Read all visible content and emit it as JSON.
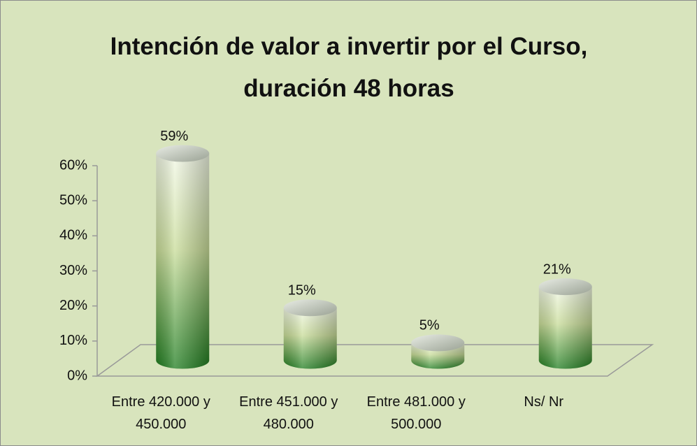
{
  "chart_data": {
    "type": "bar3d",
    "title": "Intención de valor a invertir por el Curso, duración 48 horas",
    "categories": [
      "Entre 420.000 y 450.000",
      "Entre 451.000 y 480.000",
      "Entre 481.000 y 500.000",
      "Ns/ Nr"
    ],
    "values": [
      59,
      15,
      5,
      21
    ],
    "value_labels": [
      "59%",
      "15%",
      "5%",
      "21%"
    ],
    "color": "#1f7d1f",
    "ylim": [
      0,
      60
    ],
    "yticks": [
      {
        "value": 0,
        "label": "0%"
      },
      {
        "value": 10,
        "label": "10%"
      },
      {
        "value": 20,
        "label": "20%"
      },
      {
        "value": 30,
        "label": "30%"
      },
      {
        "value": 40,
        "label": "40%"
      },
      {
        "value": 50,
        "label": "50%"
      },
      {
        "value": 60,
        "label": "60%"
      }
    ],
    "grid": false
  }
}
